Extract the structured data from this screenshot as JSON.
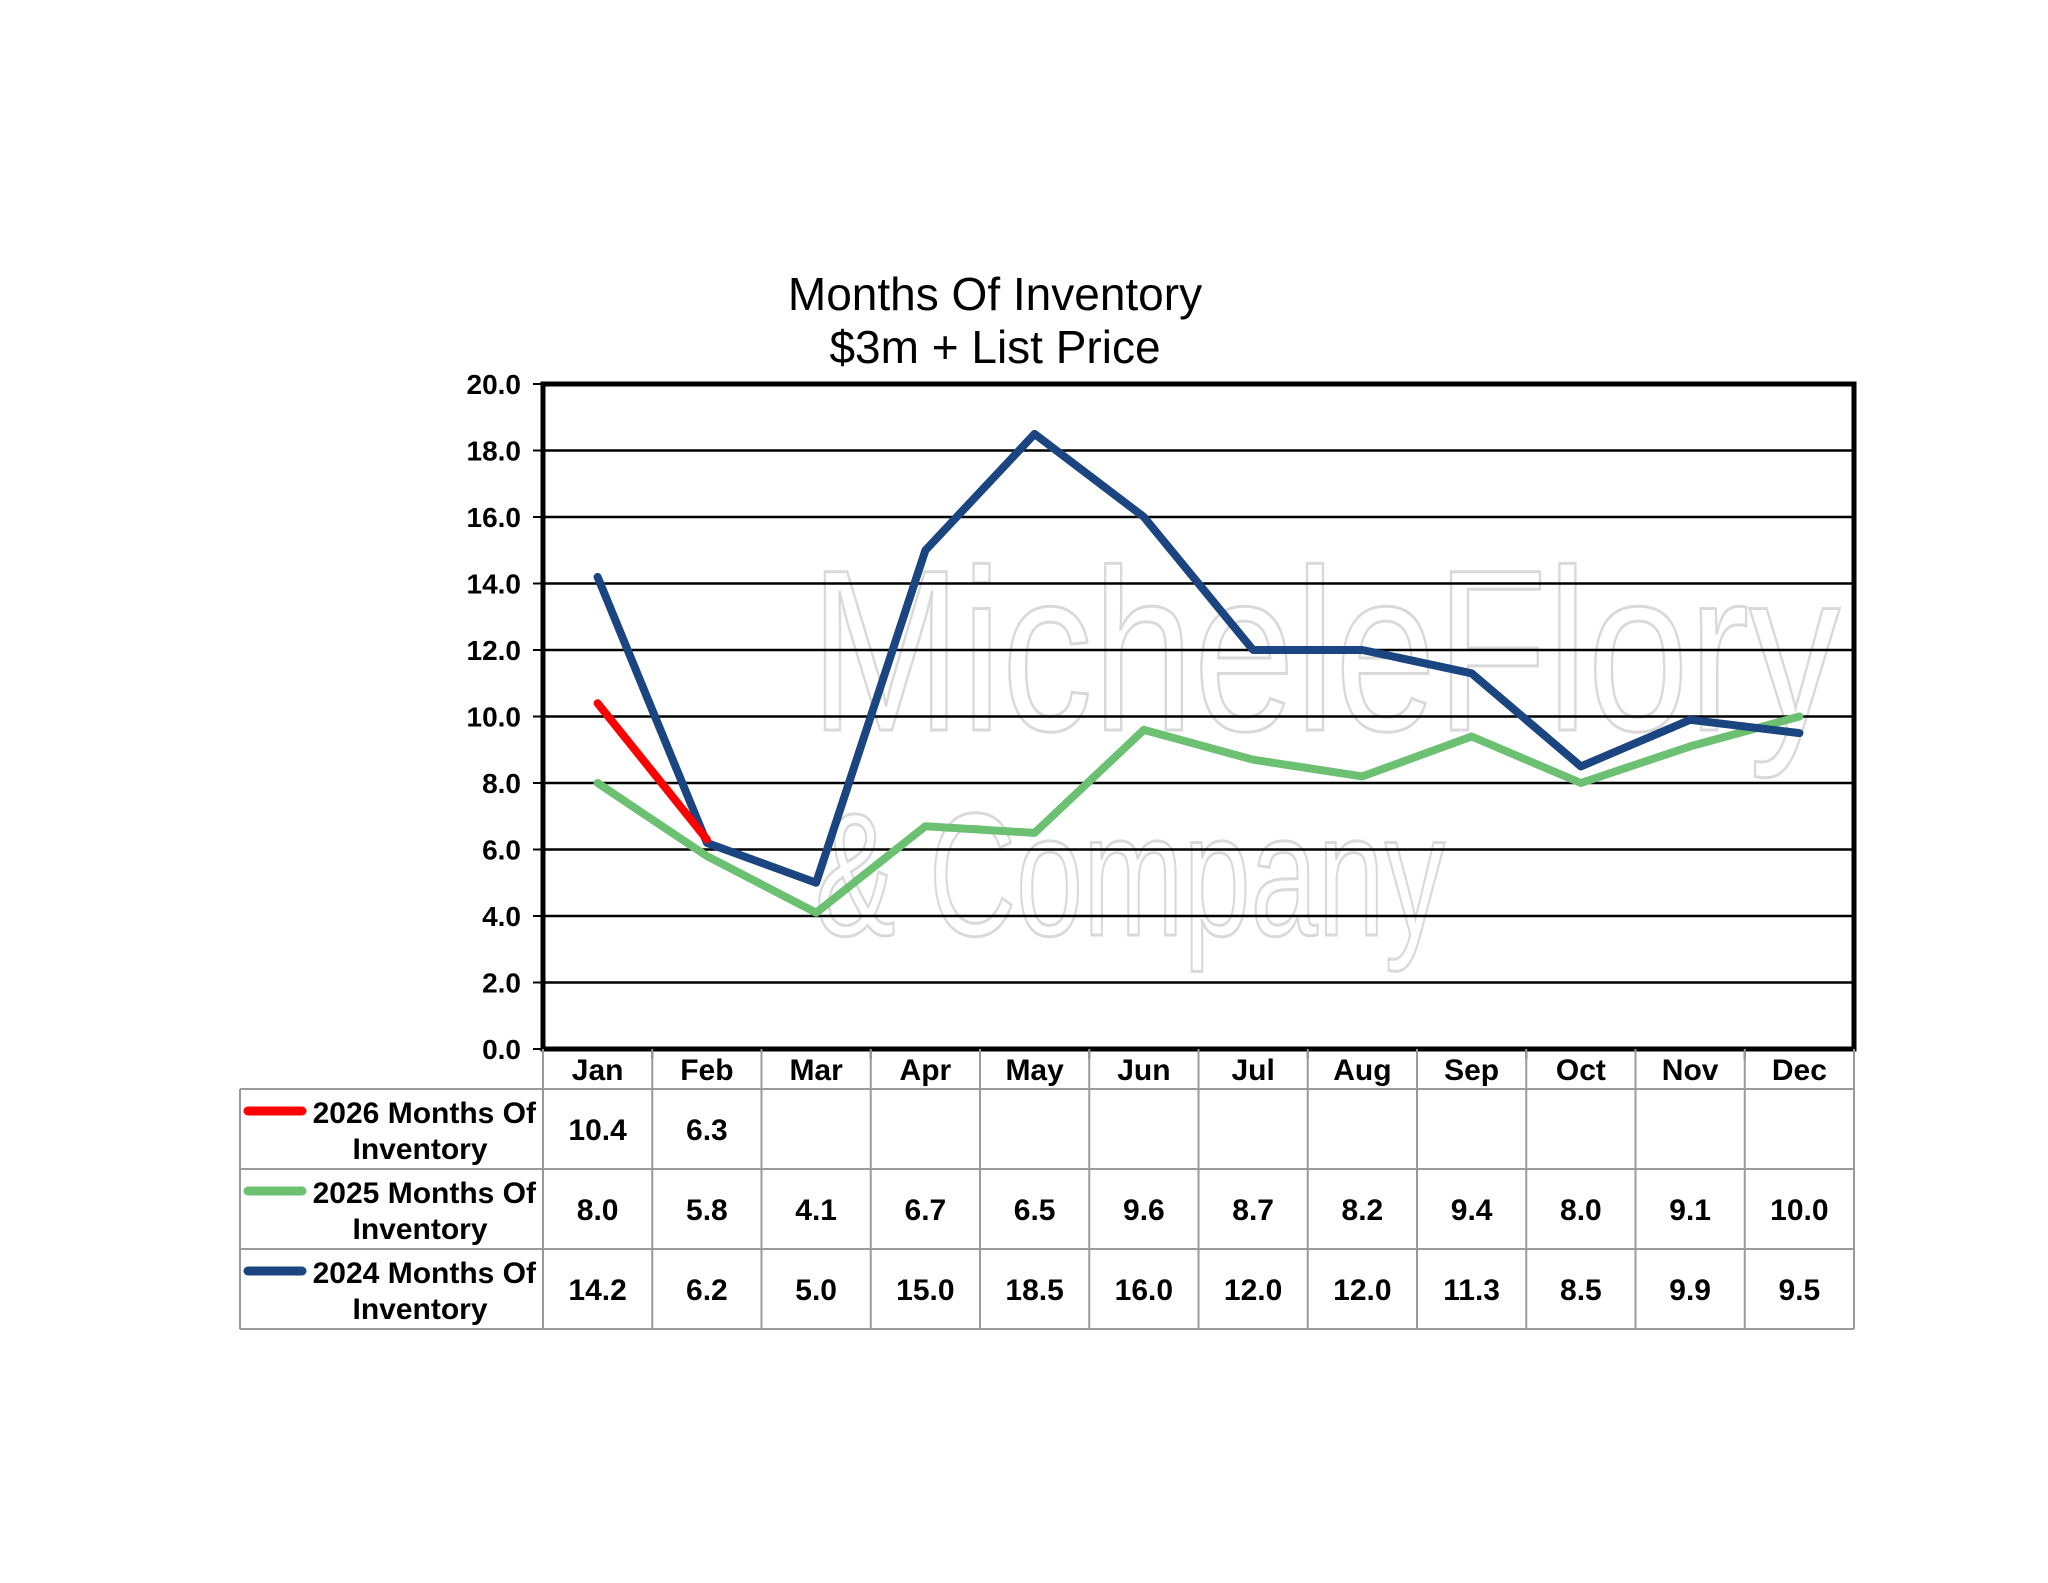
{
  "chart_data": {
    "type": "line",
    "title": "Months Of Inventory",
    "subtitle": "$3m + List Price",
    "categories": [
      "Jan",
      "Feb",
      "Mar",
      "Apr",
      "May",
      "Jun",
      "Jul",
      "Aug",
      "Sep",
      "Oct",
      "Nov",
      "Dec"
    ],
    "ylim": [
      0,
      20
    ],
    "ytick_step": 2,
    "ytick_labels": [
      "0.0",
      "2.0",
      "4.0",
      "6.0",
      "8.0",
      "10.0",
      "12.0",
      "14.0",
      "16.0",
      "18.0",
      "20.0"
    ],
    "grid": true,
    "legend": "data table below chart",
    "series": [
      {
        "name": "2026 Months Of Inventory",
        "name_lines": [
          "2026 Months Of",
          "Inventory"
        ],
        "color": "#ff0000",
        "values": [
          10.4,
          6.3,
          null,
          null,
          null,
          null,
          null,
          null,
          null,
          null,
          null,
          null
        ],
        "labels": [
          "10.4",
          "6.3",
          "",
          "",
          "",
          "",
          "",
          "",
          "",
          "",
          "",
          ""
        ]
      },
      {
        "name": "2025 Months Of Inventory",
        "name_lines": [
          "2025 Months Of",
          "Inventory"
        ],
        "color": "#6cc071",
        "values": [
          8.0,
          5.8,
          4.1,
          6.7,
          6.5,
          9.6,
          8.7,
          8.2,
          9.4,
          8.0,
          9.1,
          10.0
        ],
        "labels": [
          "8.0",
          "5.8",
          "4.1",
          "6.7",
          "6.5",
          "9.6",
          "8.7",
          "8.2",
          "9.4",
          "8.0",
          "9.1",
          "10.0"
        ]
      },
      {
        "name": "2024 Months Of Inventory",
        "name_lines": [
          "2024 Months Of",
          "Inventory"
        ],
        "color": "#1b4580",
        "values": [
          14.2,
          6.2,
          5.0,
          15.0,
          18.5,
          16.0,
          12.0,
          12.0,
          11.3,
          8.5,
          9.9,
          9.5
        ],
        "labels": [
          "14.2",
          "6.2",
          "5.0",
          "15.0",
          "18.5",
          "16.0",
          "12.0",
          "12.0",
          "11.3",
          "8.5",
          "9.9",
          "9.5"
        ]
      }
    ]
  },
  "watermark": {
    "line1": "MicheleFlory",
    "line2": "& Company"
  }
}
